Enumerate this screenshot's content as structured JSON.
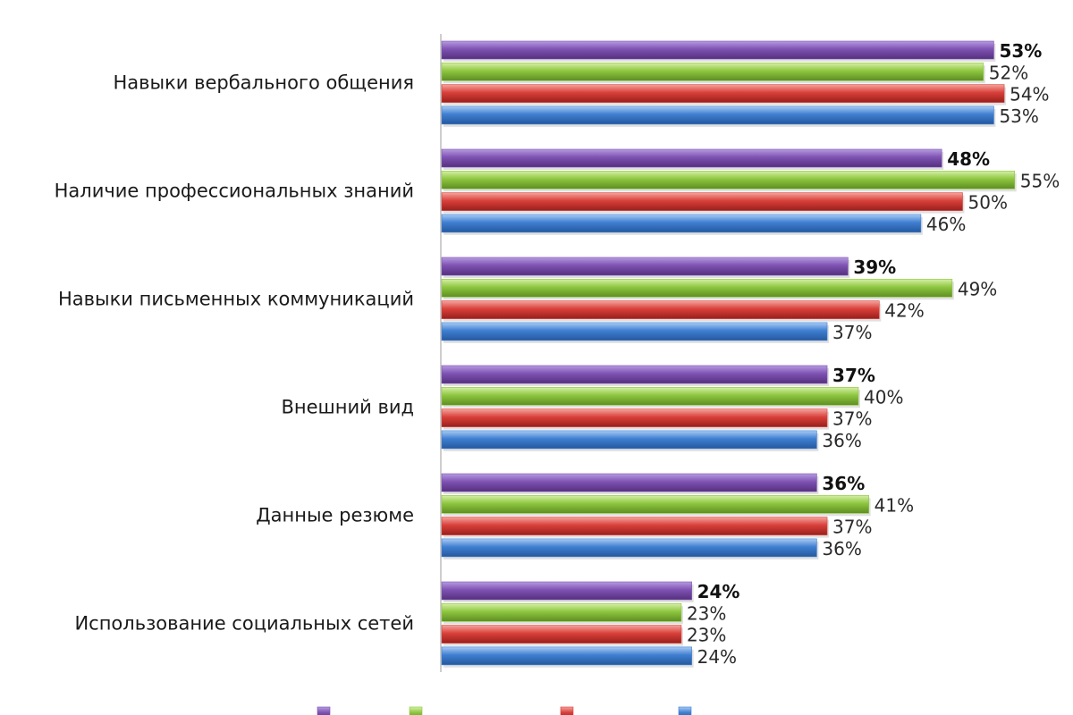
{
  "chart_data": {
    "type": "bar",
    "orientation": "horizontal",
    "title": "",
    "categories": [
      "Навыки вербального общения",
      "Наличие профессиональных знаний",
      "Навыки письменных коммуникаций",
      "Внешний вид",
      "Данные резюме",
      "Использование социальных сетей"
    ],
    "series": [
      {
        "color": "#7e52b2",
        "values": [
          53,
          48,
          39,
          37,
          36,
          24
        ],
        "labels": [
          "53%",
          "48%",
          "39%",
          "37%",
          "36%",
          "24%"
        ],
        "bold_labels": true
      },
      {
        "color": "#8dc63f",
        "values": [
          52,
          55,
          49,
          40,
          41,
          23
        ],
        "labels": [
          "52%",
          "55%",
          "49%",
          "40%",
          "41%",
          "23%"
        ],
        "bold_labels": false
      },
      {
        "color": "#d9403a",
        "values": [
          54,
          50,
          42,
          37,
          37,
          23
        ],
        "labels": [
          "54%",
          "50%",
          "42%",
          "37%",
          "37%",
          "23%"
        ],
        "bold_labels": false
      },
      {
        "color": "#3f7fd1",
        "values": [
          53,
          46,
          37,
          36,
          36,
          24
        ],
        "labels": [
          "53%",
          "46%",
          "37%",
          "36%",
          "36%",
          "24%"
        ],
        "bold_labels": false
      }
    ],
    "xlim": [
      0,
      56
    ],
    "grid": false,
    "legend_placement": "bottom",
    "value_unit": "%"
  }
}
